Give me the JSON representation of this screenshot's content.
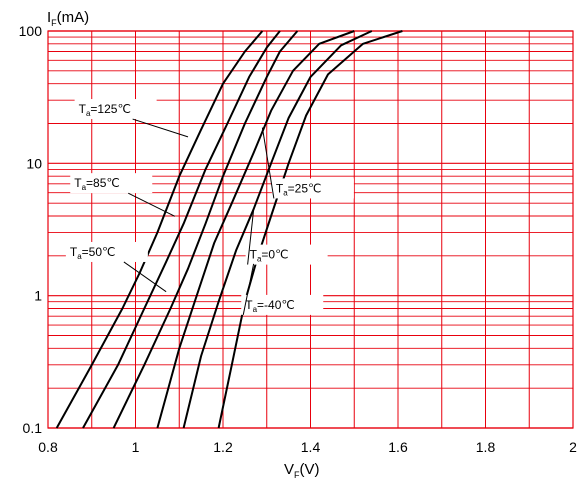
{
  "chart_data": {
    "type": "line",
    "xlabel": {
      "main": "V",
      "sub": "F",
      "unit": "(V)"
    },
    "ylabel": {
      "main": "I",
      "sub": "F",
      "unit": "(mA)"
    },
    "xlim": [
      0.8,
      2.0
    ],
    "ylim": [
      0.1,
      100
    ],
    "yscale": "log",
    "grid": true,
    "grid_color": "#e8000d",
    "line_color": "#000000",
    "xticks": [
      "0.8",
      "1",
      "1.2",
      "1.4",
      "1.6",
      "1.8",
      "2"
    ],
    "yticks": [
      "0.1",
      "1",
      "10",
      "100"
    ],
    "series": [
      {
        "main": "T",
        "sub": "a",
        "cond": "=125℃",
        "x": [
          0.82,
          0.9,
          0.97,
          1.01,
          1.05,
          1.1,
          1.15,
          1.2,
          1.25,
          1.29
        ],
        "y": [
          0.1,
          0.3,
          0.8,
          1.5,
          3,
          8,
          18,
          40,
          70,
          100
        ]
      },
      {
        "main": "T",
        "sub": "a",
        "cond": "=85℃",
        "x": [
          0.88,
          0.96,
          1.02,
          1.07,
          1.11,
          1.16,
          1.21,
          1.26,
          1.3,
          1.33
        ],
        "y": [
          0.1,
          0.3,
          0.8,
          1.8,
          3.5,
          9,
          20,
          45,
          75,
          100
        ]
      },
      {
        "main": "T",
        "sub": "a",
        "cond": "=50℃",
        "x": [
          0.95,
          1.02,
          1.08,
          1.12,
          1.16,
          1.2,
          1.25,
          1.3,
          1.33,
          1.37
        ],
        "y": [
          0.1,
          0.3,
          0.8,
          1.6,
          3.5,
          8,
          20,
          45,
          70,
          100
        ]
      },
      {
        "main": "T",
        "sub": "a",
        "cond": "=25℃",
        "x": [
          1.05,
          1.1,
          1.14,
          1.18,
          1.22,
          1.27,
          1.31,
          1.36,
          1.42,
          1.5
        ],
        "y": [
          0.1,
          0.4,
          1.0,
          2.5,
          5,
          12,
          25,
          50,
          80,
          100
        ]
      },
      {
        "main": "T",
        "sub": "a",
        "cond": "=0℃",
        "x": [
          1.11,
          1.15,
          1.19,
          1.23,
          1.27,
          1.31,
          1.35,
          1.4,
          1.47,
          1.54
        ],
        "y": [
          0.1,
          0.35,
          0.9,
          2.2,
          4.5,
          10,
          22,
          45,
          78,
          100
        ]
      },
      {
        "main": "T",
        "sub": "a",
        "cond": "=-40℃",
        "x": [
          1.19,
          1.22,
          1.25,
          1.28,
          1.31,
          1.35,
          1.39,
          1.44,
          1.52,
          1.61
        ],
        "y": [
          0.1,
          0.3,
          0.9,
          2.0,
          4.0,
          10,
          23,
          47,
          80,
          100
        ]
      }
    ],
    "annotations": [
      {
        "series": 0,
        "label_x": 0.87,
        "label_log_y": 1.38,
        "point_x": 1.12,
        "point_log_y": 1.2,
        "anchor": "start"
      },
      {
        "series": 1,
        "label_x": 0.86,
        "label_log_y": 0.82,
        "point_x": 1.09,
        "point_log_y": 0.6,
        "anchor": "start"
      },
      {
        "series": 2,
        "label_x": 0.85,
        "label_log_y": 0.3,
        "point_x": 1.07,
        "point_log_y": 0.03,
        "anchor": "start"
      },
      {
        "series": 3,
        "label_x": 1.49,
        "label_log_y": 0.78,
        "point_x": 1.29,
        "point_log_y": 1.27,
        "anchor": "end"
      },
      {
        "series": 4,
        "label_x": 1.43,
        "label_log_y": 0.28,
        "point_x": 1.27,
        "point_log_y": 0.65,
        "anchor": "end"
      },
      {
        "series": 5,
        "label_x": 1.42,
        "label_log_y": -0.1,
        "point_x": 1.27,
        "point_log_y": 0.24,
        "anchor": "end"
      }
    ]
  }
}
